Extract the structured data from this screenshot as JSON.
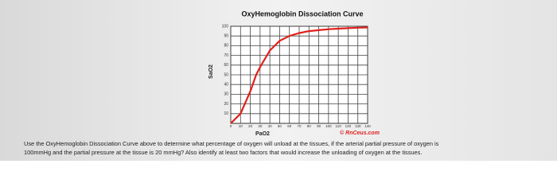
{
  "chart_data": {
    "type": "line",
    "title": "OxyHemoglobin Dissociation Curve",
    "x_label": "PaO2",
    "y_label": "SaO2",
    "watermark": "© RnCeus.com",
    "x": [
      0,
      10,
      20,
      26,
      30,
      40,
      50,
      60,
      70,
      80,
      90,
      100,
      110,
      120,
      130,
      140
    ],
    "values": [
      0,
      10,
      33,
      50,
      58,
      75,
      85,
      90,
      93,
      95,
      96,
      97,
      97.5,
      98,
      98.5,
      98.8
    ],
    "color": "#e0201b",
    "xlim": [
      0,
      140
    ],
    "xticks": [
      0,
      10,
      20,
      30,
      40,
      50,
      60,
      70,
      80,
      90,
      100,
      110,
      120,
      130,
      140
    ],
    "ylim": [
      0,
      100
    ],
    "yticks": [
      10,
      20,
      30,
      40,
      50,
      60,
      70,
      80,
      90,
      100
    ],
    "grid": true
  },
  "question": [
    "Use the OxyHemoglobin Dissociation Curve above to determine what percentage of oxygen will unload at the tissues, if the arterial partial pressure of oxygen is",
    "100mmHg and the partial pressure at the tissue is 20 mmHg? Also identify at least two factors that would increase the unloading of oxygen at the tissues."
  ]
}
